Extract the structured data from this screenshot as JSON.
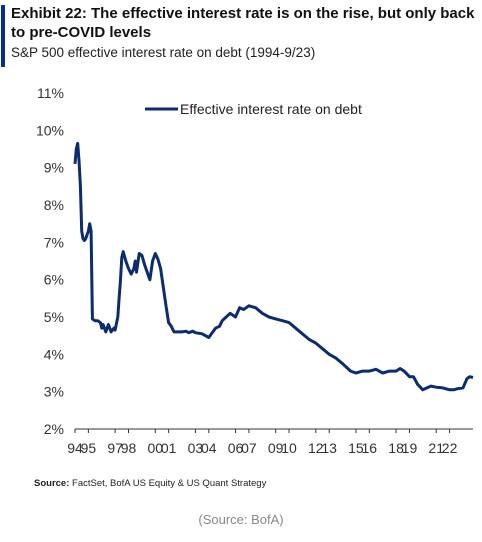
{
  "header": {
    "title": "Exhibit 22: The effective interest rate is on the rise, but only back to pre-COVID levels",
    "subtitle": "S&P 500 effective interest rate on debt (1994-9/23)"
  },
  "footer": {
    "source_label": "Source:",
    "source_text": "FactSet, BofA US Equity & US Quant Strategy",
    "credit": "(Source: BofA)"
  },
  "colors": {
    "accent": "#0b2d8a",
    "line": "#0b2d6e",
    "axis": "#333333"
  },
  "chart_data": {
    "type": "line",
    "title": "Exhibit 22: The effective interest rate is on the rise, but only back to pre-COVID levels",
    "subtitle": "S&P 500 effective interest rate on debt (1994-9/23)",
    "xlabel": "",
    "ylabel": "",
    "ylim": [
      2,
      11
    ],
    "xlim": [
      1994,
      2023.75
    ],
    "y_ticks": [
      2,
      3,
      4,
      5,
      6,
      7,
      8,
      9,
      10,
      11
    ],
    "y_tick_labels": [
      "2%",
      "3%",
      "4%",
      "5%",
      "6%",
      "7%",
      "8%",
      "9%",
      "10%",
      "11%"
    ],
    "x_ticks": [
      1994,
      1995,
      1997,
      1998,
      2000,
      2001,
      2003,
      2004,
      2006,
      2007,
      2009,
      2010,
      2012,
      2013,
      2015,
      2016,
      2018,
      2019,
      2021,
      2022
    ],
    "x_tick_labels": [
      "94",
      "95",
      "97",
      "98",
      "00",
      "01",
      "03",
      "04",
      "06",
      "07",
      "09",
      "10",
      "12",
      "13",
      "15",
      "16",
      "18",
      "19",
      "21",
      "22"
    ],
    "grid": false,
    "legend_position": "top-center",
    "series": [
      {
        "name": "Effective interest rate on debt",
        "x": [
          1994.0,
          1994.1,
          1994.2,
          1994.3,
          1994.4,
          1994.5,
          1994.6,
          1994.7,
          1994.8,
          1994.9,
          1995.0,
          1995.1,
          1995.2,
          1995.3,
          1995.5,
          1995.7,
          1995.9,
          1996.0,
          1996.1,
          1996.3,
          1996.5,
          1996.7,
          1996.9,
          1997.0,
          1997.2,
          1997.3,
          1997.4,
          1997.5,
          1997.6,
          1997.8,
          1998.0,
          1998.2,
          1998.4,
          1998.5,
          1998.6,
          1998.8,
          1999.0,
          1999.2,
          1999.4,
          1999.6,
          1999.8,
          2000.0,
          2000.2,
          2000.4,
          2000.6,
          2000.8,
          2001.0,
          2001.2,
          2001.4,
          2001.7,
          2002.0,
          2002.3,
          2002.5,
          2002.8,
          2003.0,
          2003.5,
          2004.0,
          2004.5,
          2004.8,
          2005.0,
          2005.3,
          2005.6,
          2006.0,
          2006.3,
          2006.6,
          2007.0,
          2007.5,
          2008.0,
          2008.5,
          2009.0,
          2009.5,
          2010.0,
          2010.5,
          2011.0,
          2011.5,
          2012.0,
          2012.5,
          2013.0,
          2013.5,
          2014.0,
          2014.3,
          2014.6,
          2015.0,
          2015.5,
          2016.0,
          2016.5,
          2017.0,
          2017.5,
          2018.0,
          2018.3,
          2018.6,
          2019.0,
          2019.3,
          2019.6,
          2020.0,
          2020.3,
          2020.6,
          2021.0,
          2021.5,
          2022.0,
          2022.3,
          2022.6,
          2023.0,
          2023.3,
          2023.5,
          2023.75
        ],
        "values": [
          9.1,
          9.5,
          9.65,
          9.2,
          8.5,
          7.3,
          7.1,
          7.05,
          7.1,
          7.2,
          7.3,
          7.5,
          7.3,
          4.95,
          4.9,
          4.9,
          4.85,
          4.7,
          4.8,
          4.6,
          4.8,
          4.6,
          4.7,
          4.65,
          5.0,
          5.5,
          6.0,
          6.6,
          6.75,
          6.5,
          6.3,
          6.15,
          6.3,
          6.5,
          6.2,
          6.7,
          6.65,
          6.4,
          6.2,
          6.0,
          6.5,
          6.7,
          6.55,
          6.3,
          5.8,
          5.3,
          4.85,
          4.75,
          4.6,
          4.6,
          4.6,
          4.62,
          4.58,
          4.62,
          4.58,
          4.55,
          4.45,
          4.7,
          4.75,
          4.9,
          5.0,
          5.1,
          5.0,
          5.25,
          5.2,
          5.3,
          5.25,
          5.1,
          5.0,
          4.95,
          4.9,
          4.85,
          4.7,
          4.55,
          4.4,
          4.3,
          4.15,
          4.0,
          3.9,
          3.75,
          3.65,
          3.55,
          3.5,
          3.55,
          3.55,
          3.6,
          3.5,
          3.55,
          3.55,
          3.62,
          3.55,
          3.4,
          3.4,
          3.2,
          3.05,
          3.1,
          3.15,
          3.12,
          3.1,
          3.05,
          3.05,
          3.08,
          3.1,
          3.35,
          3.4,
          3.38
        ]
      }
    ]
  }
}
